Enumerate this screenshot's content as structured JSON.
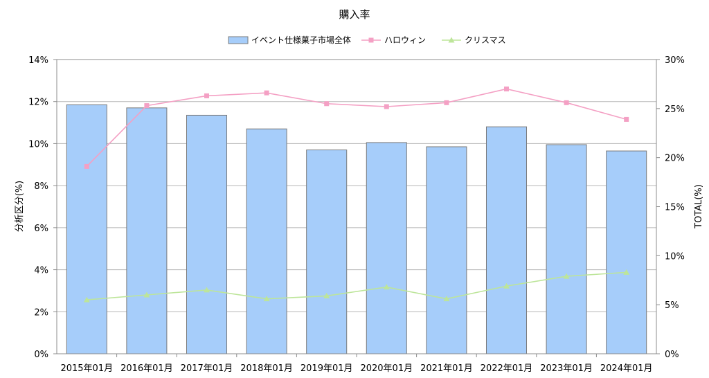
{
  "chart_data": {
    "type": "bar",
    "title": "購入率",
    "categories": [
      "2015年01月",
      "2016年01月",
      "2017年01月",
      "2018年01月",
      "2019年01月",
      "2020年01月",
      "2021年01月",
      "2022年01月",
      "2023年01月",
      "2024年01月"
    ],
    "ylabel": "分析区分(%)",
    "y2label": "TOTAL(%)",
    "ylim": [
      0,
      14
    ],
    "y2lim": [
      0,
      30
    ],
    "yticks": [
      "0%",
      "2%",
      "4%",
      "6%",
      "8%",
      "10%",
      "12%",
      "14%"
    ],
    "y2ticks": [
      "0%",
      "5%",
      "10%",
      "15%",
      "20%",
      "25%",
      "30%"
    ],
    "grid": true,
    "legend_position": "top",
    "series": [
      {
        "name": "イベント仕様菓子市場全体",
        "type": "bar",
        "axis": "left",
        "color": "#a6cdfa",
        "values": [
          11.85,
          11.7,
          11.35,
          10.7,
          9.7,
          10.05,
          9.85,
          10.8,
          9.95,
          9.65
        ]
      },
      {
        "name": "ハロウィン",
        "type": "line",
        "axis": "right",
        "color": "#f4a0c4",
        "values": [
          19.1,
          25.3,
          26.3,
          26.6,
          25.5,
          25.2,
          25.6,
          27.0,
          25.6,
          23.9
        ]
      },
      {
        "name": "クリスマス",
        "type": "line",
        "axis": "right",
        "color": "#bde59a",
        "values": [
          5.5,
          6.0,
          6.5,
          5.6,
          5.9,
          6.8,
          5.6,
          6.9,
          7.9,
          8.3
        ]
      }
    ]
  }
}
